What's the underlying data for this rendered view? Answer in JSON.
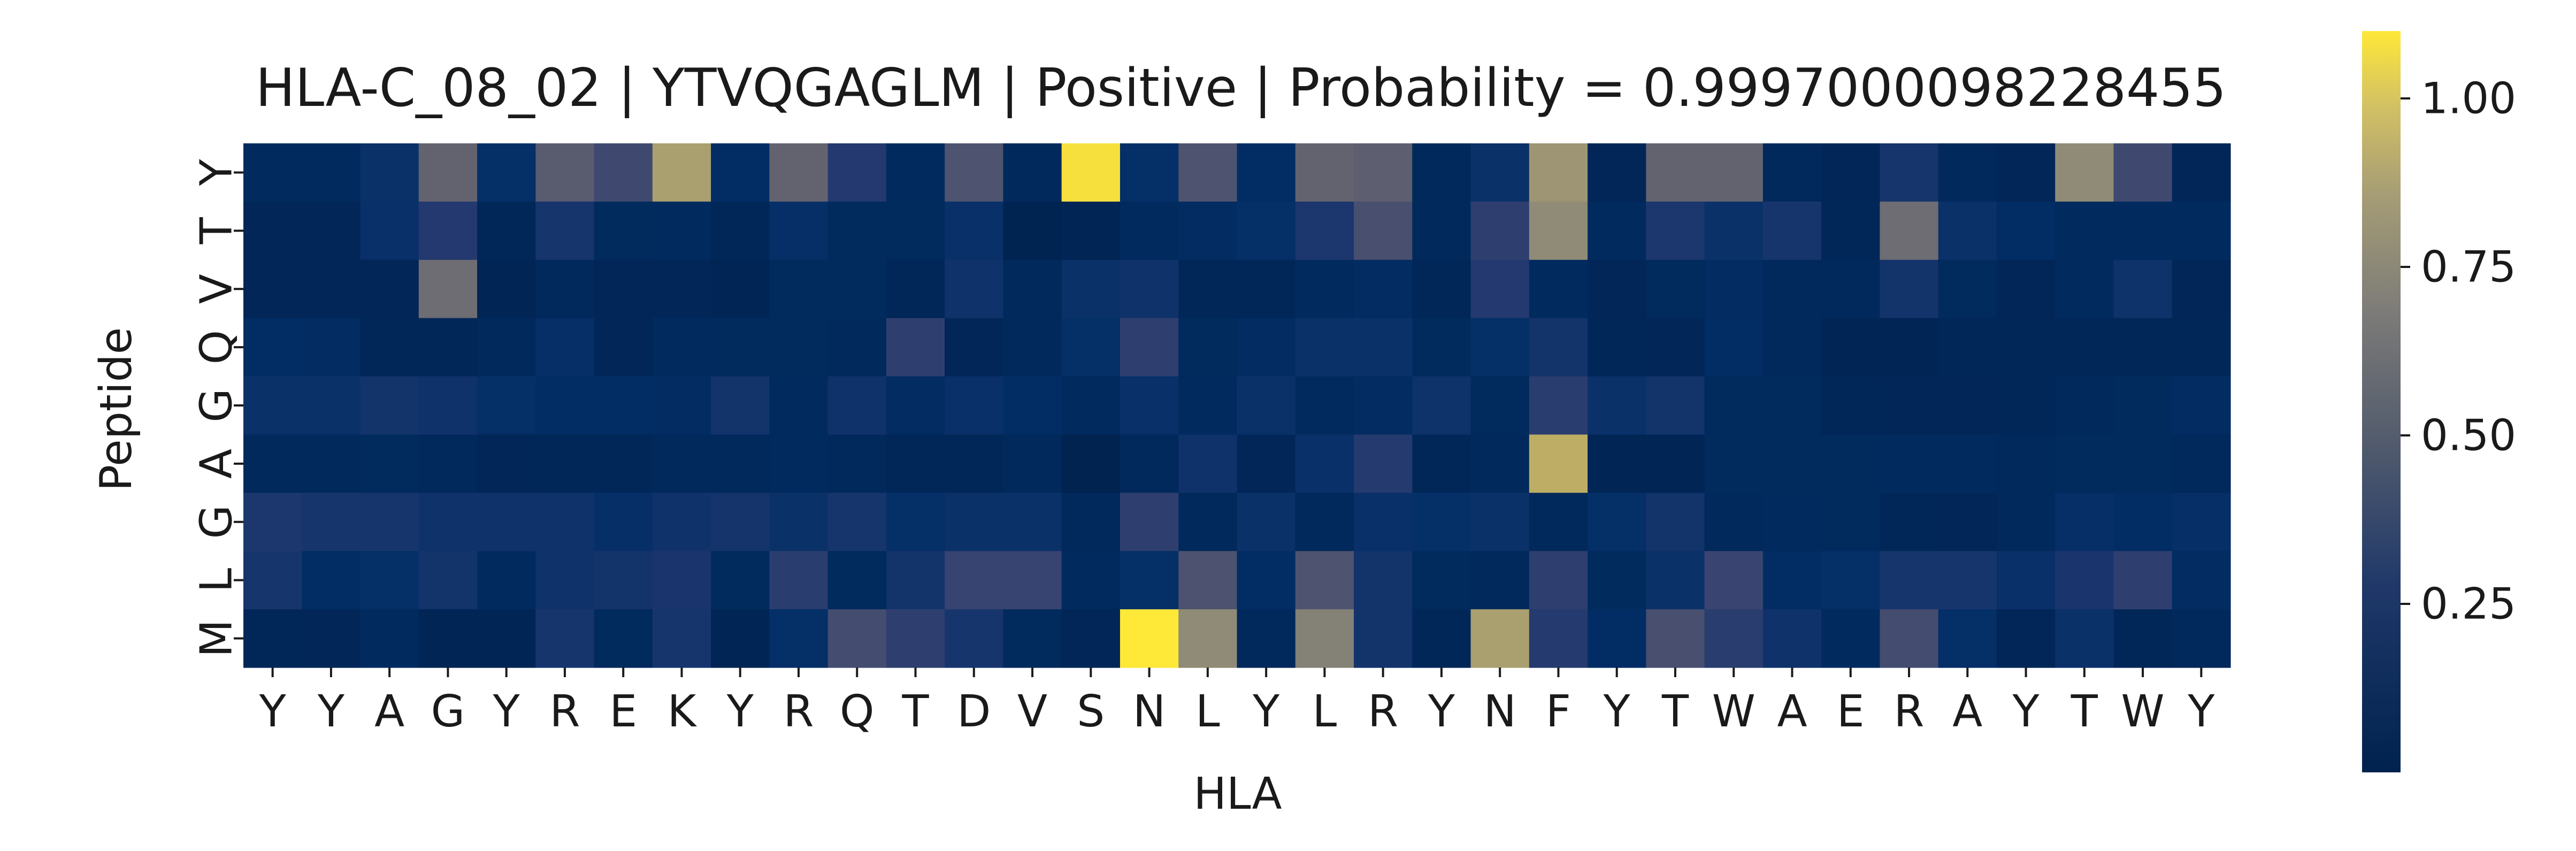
{
  "chart_data": {
    "type": "heatmap",
    "title": "HLA-C_08_02 | YTVQGAGLM | Positive | Probability = 0.9997000098228455",
    "xlabel": "HLA",
    "ylabel": "Peptide",
    "x_categories": [
      "Y",
      "Y",
      "A",
      "G",
      "Y",
      "R",
      "E",
      "K",
      "Y",
      "R",
      "Q",
      "T",
      "D",
      "V",
      "S",
      "N",
      "L",
      "Y",
      "L",
      "R",
      "Y",
      "N",
      "F",
      "Y",
      "T",
      "W",
      "A",
      "E",
      "R",
      "A",
      "Y",
      "T",
      "W",
      "Y"
    ],
    "y_categories": [
      "Y",
      "T",
      "V",
      "Q",
      "G",
      "A",
      "G",
      "L",
      "M"
    ],
    "values": [
      [
        0.08,
        0.08,
        0.15,
        0.55,
        0.12,
        0.5,
        0.38,
        0.85,
        0.1,
        0.55,
        0.25,
        0.08,
        0.45,
        0.06,
        1.08,
        0.12,
        0.45,
        0.1,
        0.55,
        0.52,
        0.06,
        0.15,
        0.8,
        0.04,
        0.55,
        0.55,
        0.06,
        0.04,
        0.2,
        0.06,
        0.04,
        0.75,
        0.38,
        0.04
      ],
      [
        0.04,
        0.04,
        0.14,
        0.25,
        0.05,
        0.2,
        0.07,
        0.08,
        0.05,
        0.13,
        0.07,
        0.07,
        0.14,
        0.02,
        0.03,
        0.08,
        0.09,
        0.12,
        0.22,
        0.42,
        0.06,
        0.3,
        0.75,
        0.08,
        0.22,
        0.15,
        0.2,
        0.05,
        0.6,
        0.15,
        0.1,
        0.08,
        0.08,
        0.08
      ],
      [
        0.04,
        0.04,
        0.04,
        0.6,
        0.03,
        0.06,
        0.04,
        0.04,
        0.03,
        0.07,
        0.07,
        0.05,
        0.17,
        0.06,
        0.15,
        0.17,
        0.05,
        0.05,
        0.08,
        0.09,
        0.05,
        0.25,
        0.08,
        0.04,
        0.07,
        0.09,
        0.06,
        0.06,
        0.18,
        0.07,
        0.04,
        0.08,
        0.16,
        0.04
      ],
      [
        0.1,
        0.09,
        0.05,
        0.05,
        0.06,
        0.13,
        0.04,
        0.08,
        0.07,
        0.07,
        0.06,
        0.3,
        0.04,
        0.06,
        0.12,
        0.3,
        0.07,
        0.09,
        0.15,
        0.15,
        0.07,
        0.12,
        0.18,
        0.05,
        0.04,
        0.1,
        0.06,
        0.03,
        0.03,
        0.05,
        0.05,
        0.05,
        0.05,
        0.05
      ],
      [
        0.15,
        0.15,
        0.18,
        0.17,
        0.12,
        0.1,
        0.1,
        0.09,
        0.18,
        0.08,
        0.17,
        0.09,
        0.14,
        0.1,
        0.08,
        0.14,
        0.08,
        0.15,
        0.08,
        0.09,
        0.16,
        0.07,
        0.28,
        0.15,
        0.18,
        0.07,
        0.07,
        0.05,
        0.04,
        0.04,
        0.05,
        0.06,
        0.07,
        0.09
      ],
      [
        0.06,
        0.06,
        0.07,
        0.06,
        0.04,
        0.05,
        0.05,
        0.06,
        0.06,
        0.08,
        0.06,
        0.05,
        0.05,
        0.06,
        0.01,
        0.06,
        0.17,
        0.04,
        0.14,
        0.26,
        0.05,
        0.06,
        0.92,
        0.03,
        0.03,
        0.07,
        0.07,
        0.07,
        0.08,
        0.08,
        0.06,
        0.07,
        0.07,
        0.06
      ],
      [
        0.22,
        0.2,
        0.2,
        0.17,
        0.17,
        0.17,
        0.13,
        0.17,
        0.19,
        0.15,
        0.2,
        0.12,
        0.15,
        0.15,
        0.06,
        0.3,
        0.06,
        0.15,
        0.06,
        0.14,
        0.12,
        0.15,
        0.06,
        0.12,
        0.18,
        0.06,
        0.08,
        0.07,
        0.05,
        0.04,
        0.06,
        0.13,
        0.1,
        0.13
      ],
      [
        0.2,
        0.1,
        0.12,
        0.18,
        0.08,
        0.17,
        0.18,
        0.21,
        0.07,
        0.28,
        0.07,
        0.18,
        0.34,
        0.34,
        0.08,
        0.12,
        0.44,
        0.1,
        0.45,
        0.18,
        0.07,
        0.06,
        0.3,
        0.07,
        0.15,
        0.35,
        0.1,
        0.12,
        0.2,
        0.2,
        0.14,
        0.21,
        0.3,
        0.09
      ],
      [
        0.05,
        0.04,
        0.08,
        0.03,
        0.03,
        0.2,
        0.07,
        0.2,
        0.03,
        0.12,
        0.4,
        0.3,
        0.2,
        0.07,
        0.04,
        1.1,
        0.75,
        0.06,
        0.7,
        0.18,
        0.05,
        0.85,
        0.26,
        0.1,
        0.42,
        0.28,
        0.17,
        0.08,
        0.4,
        0.12,
        0.04,
        0.15,
        0.05,
        0.06
      ]
    ],
    "colormap": "cividis",
    "vmin": 0.0,
    "vmax": 1.1,
    "colorbar_ticks": [
      0.25,
      0.5,
      0.75,
      1.0
    ],
    "colorbar_tick_labels": [
      "0.25",
      "0.50",
      "0.75",
      "1.00"
    ]
  }
}
